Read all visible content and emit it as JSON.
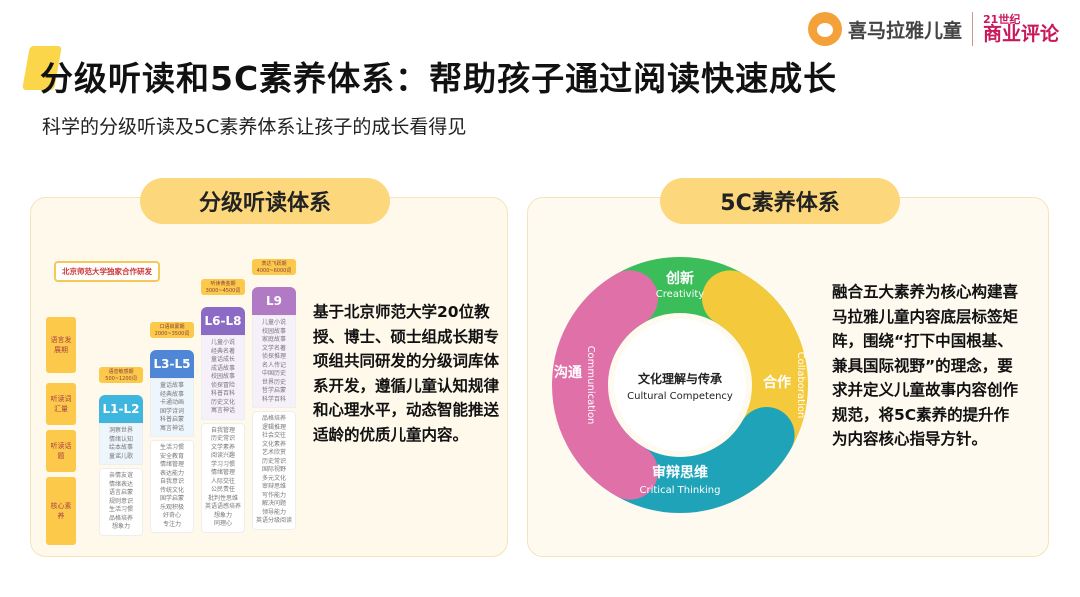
{
  "logo": {
    "brand": "喜马拉雅儿童",
    "magazine_top": "21世纪",
    "magazine": "商业评论"
  },
  "title": "分级听读和5C素养体系：帮助孩子通过阅读快速成长",
  "subtitle": "科学的分级听读及5C素养体系让孩子的成长看得见",
  "left": {
    "header": "分级听读体系",
    "description": "基于北京师范大学20位教授、博士、硕士组成长期专项组共同研发的分级词库体系开发，遵循儿童认知规律和心理水平，动态智能推送适龄的优质儿童内容。",
    "diagram": {
      "badge": "北京师范大学独家合作研发",
      "rows": [
        "语言发展期",
        "听读词汇量",
        "听读话题",
        "核心素养"
      ],
      "levels": [
        {
          "name": "L1-L2",
          "stage": "语音敏感期",
          "words": "500~1200词",
          "color": "#3fb6e0",
          "topics": [
            "洞察世界",
            "情绪认知",
            "绘本故事",
            "童谣儿歌"
          ],
          "core": [
            "亲情友谊",
            "情绪表达",
            "语言启蒙",
            "规则意识",
            "生活习惯",
            "品格培养",
            "想象力"
          ]
        },
        {
          "name": "L3-L5",
          "stage": "口语启蒙期",
          "words": "2000~3500词",
          "color": "#4f86d6",
          "topics": [
            "童话故事",
            "经典故事",
            "卡通动画",
            "国学诗词",
            "科普启蒙",
            "寓言神话"
          ],
          "core": [
            "生活习惯",
            "安全教育",
            "情绪管理",
            "表达能力",
            "自我意识",
            "传统文化",
            "国学启蒙",
            "乐观积极",
            "好奇心",
            "专注力"
          ]
        },
        {
          "name": "L6-L8",
          "stage": "听读黄金期",
          "words": "3000~4500词",
          "color": "#8b6bc6",
          "topics": [
            "儿童小说",
            "经典名著",
            "童话成长",
            "成语故事",
            "校园故事",
            "侦探冒险",
            "科普百科",
            "历史文化",
            "寓言神话"
          ],
          "core": [
            "自我管理",
            "历史常识",
            "文学素养",
            "阅读兴趣",
            "学习习惯",
            "情绪管理",
            "人际交往",
            "公民责任",
            "批判性思维",
            "英语语感培养",
            "想象力",
            "同理心"
          ]
        },
        {
          "name": "L9",
          "stage": "表达飞跃期",
          "words": "4000~6000词",
          "color": "#b07ac4",
          "topics": [
            "儿童小说",
            "校园故事",
            "家庭故事",
            "文学名著",
            "侦探推理",
            "名人传记",
            "中国历史",
            "世界历史",
            "哲学启蒙",
            "科学百科"
          ],
          "core": [
            "品格培养",
            "逻辑推理",
            "社会交往",
            "文化素养",
            "艺术欣赏",
            "历史常识",
            "国际视野",
            "多元文化",
            "审辩思维",
            "写作能力",
            "解决问题",
            "领导能力",
            "英语分级阅读"
          ]
        }
      ]
    }
  },
  "right": {
    "header": "5C素养体系",
    "description": "融合五大素养为核心构建喜马拉雅儿童内容底层标签矩阵，围绕“打下中国根基、兼具国际视野”的理念，要求并定义儿童故事内容创作规范，将5C素养的提升作为内容核心指导方针。",
    "center": {
      "cn": "文化理解与传承",
      "en": "Cultural Competency"
    },
    "segments": [
      {
        "cn": "创新",
        "en": "Creativity",
        "color": "#3bbd5a"
      },
      {
        "cn": "合作",
        "en": "Collaboration",
        "color": "#f4c93c"
      },
      {
        "cn": "审辩思维",
        "en": "Critical Thinking",
        "color": "#1ea3b8"
      },
      {
        "cn": "沟通",
        "en": "Communication",
        "color": "#e070a8"
      }
    ]
  }
}
